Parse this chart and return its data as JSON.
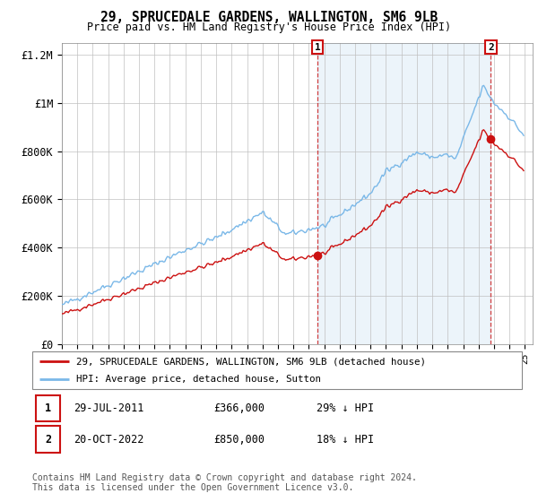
{
  "title": "29, SPRUCEDALE GARDENS, WALLINGTON, SM6 9LB",
  "subtitle": "Price paid vs. HM Land Registry's House Price Index (HPI)",
  "ylim": [
    0,
    1250000
  ],
  "yticks": [
    0,
    200000,
    400000,
    600000,
    800000,
    1000000,
    1200000
  ],
  "ytick_labels": [
    "£0",
    "£200K",
    "£400K",
    "£600K",
    "£800K",
    "£1M",
    "£1.2M"
  ],
  "hpi_color": "#7ab8e8",
  "hpi_fill_color": "#daeaf7",
  "sale_color": "#cc1111",
  "annotation1_label": "1",
  "annotation2_label": "2",
  "legend_line1": "29, SPRUCEDALE GARDENS, WALLINGTON, SM6 9LB (detached house)",
  "legend_line2": "HPI: Average price, detached house, Sutton",
  "footnote_line1": "Contains HM Land Registry data © Crown copyright and database right 2024.",
  "footnote_line2": "This data is licensed under the Open Government Licence v3.0.",
  "table_row1_num": "1",
  "table_row1_date": "29-JUL-2011",
  "table_row1_price": "£366,000",
  "table_row1_hpi": "29% ↓ HPI",
  "table_row2_num": "2",
  "table_row2_date": "20-OCT-2022",
  "table_row2_price": "£850,000",
  "table_row2_hpi": "18% ↓ HPI",
  "sale_years": [
    2011.57,
    2022.79
  ],
  "sale_values": [
    366000,
    850000
  ],
  "vline1_x": 2011.57,
  "vline2_x": 2022.79,
  "xmin": 1995,
  "xmax": 2025.5,
  "hpi_ratio": 0.72
}
